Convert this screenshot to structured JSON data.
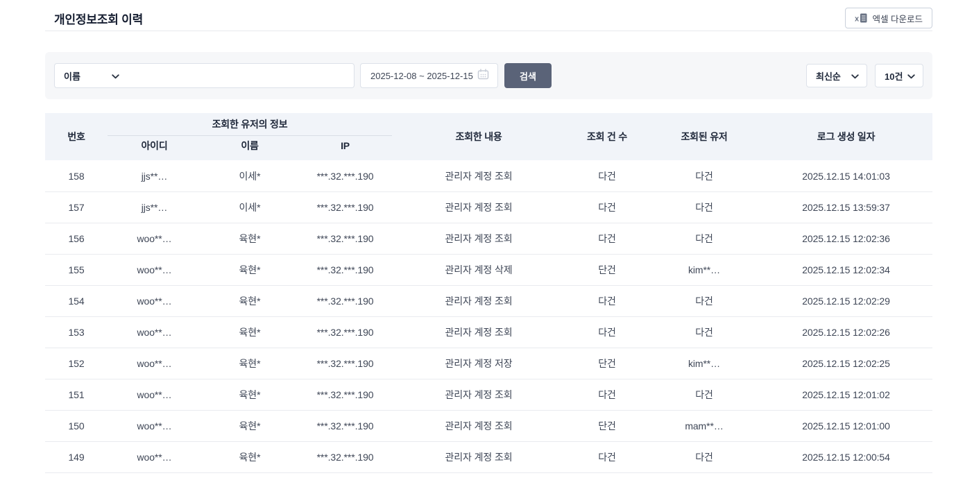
{
  "page": {
    "title": "개인정보조회 이력"
  },
  "toolbar": {
    "excel_button_label": "엑셀 다운로드"
  },
  "filters": {
    "search_type": {
      "selected": "이름"
    },
    "search_input": {
      "value": "",
      "placeholder": ""
    },
    "date_range": {
      "value": "2025-12-08 ~ 2025-12-15"
    },
    "search_button_label": "검색",
    "sort": {
      "selected": "최신순"
    },
    "page_size": {
      "selected": "10건"
    }
  },
  "table": {
    "headers": {
      "no": "번호",
      "user_info_group": "조회한 유저의 정보",
      "id": "아이디",
      "name": "이름",
      "ip": "IP",
      "content": "조회한 내용",
      "count": "조회 건 수",
      "viewed_user": "조회된 유저",
      "log_date": "로그 생성 일자"
    },
    "rows": [
      {
        "no": "158",
        "id": "jjs**…",
        "name": "이세*",
        "ip": "***.32.***.190",
        "content": "관리자 계정 조회",
        "count": "다건",
        "user": "다건",
        "date": "2025.12.15 14:01:03"
      },
      {
        "no": "157",
        "id": "jjs**…",
        "name": "이세*",
        "ip": "***.32.***.190",
        "content": "관리자 계정 조회",
        "count": "다건",
        "user": "다건",
        "date": "2025.12.15 13:59:37"
      },
      {
        "no": "156",
        "id": "woo**…",
        "name": "육현*",
        "ip": "***.32.***.190",
        "content": "관리자 계정 조회",
        "count": "다건",
        "user": "다건",
        "date": "2025.12.15 12:02:36"
      },
      {
        "no": "155",
        "id": "woo**…",
        "name": "육현*",
        "ip": "***.32.***.190",
        "content": "관리자 계정 삭제",
        "count": "단건",
        "user": "kim**…",
        "date": "2025.12.15 12:02:34"
      },
      {
        "no": "154",
        "id": "woo**…",
        "name": "육현*",
        "ip": "***.32.***.190",
        "content": "관리자 계정 조회",
        "count": "다건",
        "user": "다건",
        "date": "2025.12.15 12:02:29"
      },
      {
        "no": "153",
        "id": "woo**…",
        "name": "육현*",
        "ip": "***.32.***.190",
        "content": "관리자 계정 조회",
        "count": "다건",
        "user": "다건",
        "date": "2025.12.15 12:02:26"
      },
      {
        "no": "152",
        "id": "woo**…",
        "name": "육현*",
        "ip": "***.32.***.190",
        "content": "관리자 계정 저장",
        "count": "단건",
        "user": "kim**…",
        "date": "2025.12.15 12:02:25"
      },
      {
        "no": "151",
        "id": "woo**…",
        "name": "육현*",
        "ip": "***.32.***.190",
        "content": "관리자 계정 조회",
        "count": "다건",
        "user": "다건",
        "date": "2025.12.15 12:01:02"
      },
      {
        "no": "150",
        "id": "woo**…",
        "name": "육현*",
        "ip": "***.32.***.190",
        "content": "관리자 계정 조회",
        "count": "단건",
        "user": "mam**…",
        "date": "2025.12.15 12:01:00"
      },
      {
        "no": "149",
        "id": "woo**…",
        "name": "육현*",
        "ip": "***.32.***.190",
        "content": "관리자 계정 조회",
        "count": "다건",
        "user": "다건",
        "date": "2025.12.15 12:00:54"
      }
    ]
  },
  "colors": {
    "accent": "#5a6378",
    "filter_bg": "#f6f7f9",
    "table_header_bg": "#f1f4f9",
    "border": "#e9ebef",
    "title_text": "#151d30"
  }
}
